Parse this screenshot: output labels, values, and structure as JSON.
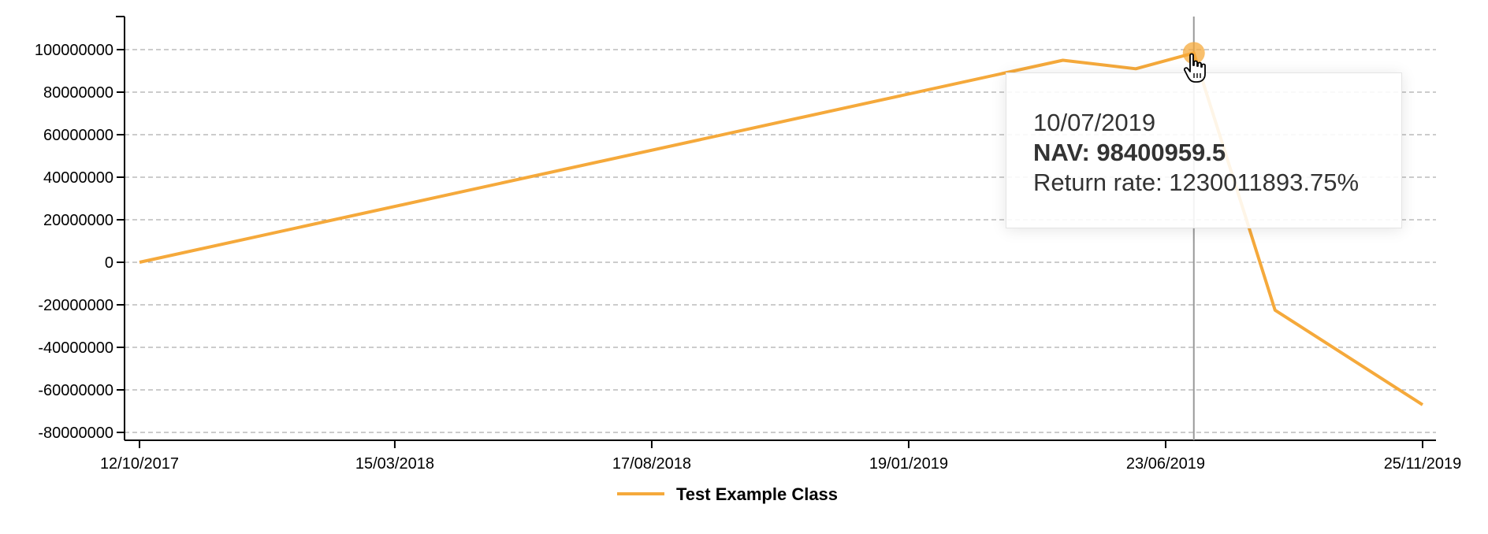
{
  "chart_data": {
    "type": "line",
    "x": [
      "12/10/2017",
      "22/04/2019",
      "05/06/2019",
      "10/07/2019",
      "28/08/2019",
      "25/11/2019"
    ],
    "series": [
      {
        "name": "Test Example Class",
        "color": "#f5a93b",
        "values": [
          0,
          95000000,
          91000000,
          98400959.5,
          -22500000,
          -67000000
        ]
      }
    ],
    "x_ticks": [
      "12/10/2017",
      "15/03/2018",
      "17/08/2018",
      "19/01/2019",
      "23/06/2019",
      "25/11/2019"
    ],
    "y_ticks": [
      100000000,
      80000000,
      60000000,
      40000000,
      20000000,
      0,
      -20000000,
      -40000000,
      -60000000,
      -80000000
    ],
    "ylim": [
      -80000000,
      100000000
    ],
    "xlim": [
      "12/10/2017",
      "25/11/2019"
    ],
    "grid": "horizontal-dashed",
    "legend": "bottom-center",
    "title": "",
    "xlabel": "",
    "ylabel": "",
    "hover_x": "10/07/2019"
  },
  "tooltip": {
    "date": "10/07/2019",
    "nav": "NAV: 98400959.5",
    "return_rate": "Return rate: 1230011893.75%"
  },
  "legend": {
    "label": "Test Example Class"
  }
}
